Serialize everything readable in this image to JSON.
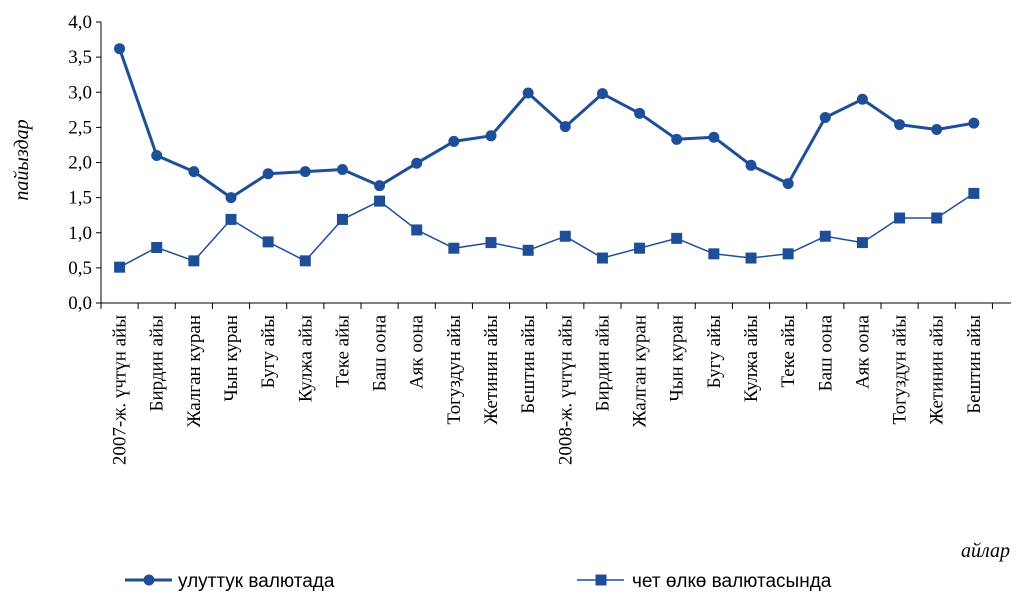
{
  "chart_data": {
    "type": "line",
    "title": "",
    "xlabel": "айлар",
    "ylabel": "пайыздар",
    "ylim": [
      0,
      4.0
    ],
    "y_ticks": [
      "0,0",
      "0,5",
      "1,0",
      "1,5",
      "2,0",
      "2,5",
      "3,0",
      "3,5",
      "4,0"
    ],
    "grid": false,
    "legend_position": "bottom",
    "categories": [
      "2007-ж. үчтүн айы",
      "Бирдин айы",
      "Жалган куран",
      "Чын куран",
      "Бугу айы",
      "Кулжа айы",
      "Теке айы",
      "Баш оона",
      "Аяк оона",
      "Тогуздун айы",
      "Жетинин айы",
      "Бештин айы",
      "2008-ж. үчтүн айы",
      "Бирдин айы",
      "Жалган куран",
      "Чын куран",
      "Бугу айы",
      "Кулжа айы",
      "Теке айы",
      "Баш оона",
      "Аяк оона",
      "Тогуздун айы",
      "Жетинин айы",
      "Бештин айы"
    ],
    "series": [
      {
        "name": "улуттук валютада",
        "color": "#1F4E99",
        "marker": "circle",
        "values": [
          3.62,
          2.1,
          1.87,
          1.5,
          1.84,
          1.87,
          1.9,
          1.67,
          1.99,
          2.3,
          2.38,
          2.99,
          2.51,
          2.98,
          2.7,
          2.33,
          2.36,
          1.96,
          1.7,
          2.64,
          2.9,
          2.54,
          2.47,
          2.56
        ]
      },
      {
        "name": "чет өлкө валютасында",
        "color": "#1F4E99",
        "marker": "square",
        "values": [
          0.51,
          0.79,
          0.6,
          1.19,
          0.87,
          0.6,
          1.19,
          1.45,
          1.04,
          0.78,
          0.86,
          0.75,
          0.95,
          0.64,
          0.78,
          0.92,
          0.7,
          0.64,
          0.7,
          0.95,
          0.86,
          1.21,
          1.21,
          1.56
        ]
      }
    ]
  }
}
